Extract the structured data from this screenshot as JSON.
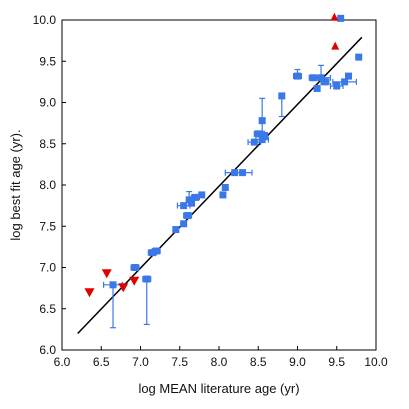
{
  "chart_data": {
    "type": "scatter",
    "title": "",
    "xlabel": "log MEAN literature age  (yr)",
    "ylabel": "log best fit age (yr).",
    "xlim": [
      6.0,
      10.0
    ],
    "ylim": [
      6.0,
      10.0
    ],
    "xticks": [
      "6.0",
      "6.5",
      "7.0",
      "7.5",
      "8.0",
      "8.5",
      "9.0",
      "9.5",
      "10.0"
    ],
    "yticks": [
      "6.0",
      "6.5",
      "7.0",
      "7.5",
      "8.0",
      "8.5",
      "9.0",
      "9.5",
      "10.0"
    ],
    "grid": false,
    "legend": "none",
    "colors": {
      "squares": "#3b78e7",
      "triangles": "#e00000",
      "line": "#000000"
    },
    "fit_line": {
      "x": [
        6.2,
        9.82
      ],
      "y": [
        6.2,
        9.79
      ]
    },
    "series": [
      {
        "marker": "square",
        "points": [
          {
            "x": 6.65,
            "y": 6.79,
            "xerr": 0.12,
            "yerr_low": 0.52,
            "yerr_high": 0.0
          },
          {
            "x": 6.93,
            "y": 7.0,
            "xerr": 0.05,
            "yerr_low": 0.0,
            "yerr_high": 0.0
          },
          {
            "x": 7.08,
            "y": 6.86,
            "xerr": 0.05,
            "yerr_low": 0.55,
            "yerr_high": 0.0
          },
          {
            "x": 7.15,
            "y": 7.18,
            "xerr": 0.05,
            "yerr_low": 0.0,
            "yerr_high": 0.0
          },
          {
            "x": 7.2,
            "y": 7.2,
            "xerr": 0.05,
            "yerr_low": 0.0,
            "yerr_high": 0.0
          },
          {
            "x": 7.45,
            "y": 7.46,
            "xerr": 0.0,
            "yerr_low": 0.0,
            "yerr_high": 0.0
          },
          {
            "x": 7.55,
            "y": 7.53,
            "xerr": 0.0,
            "yerr_low": 0.0,
            "yerr_high": 0.0
          },
          {
            "x": 7.55,
            "y": 7.75,
            "xerr": 0.08,
            "yerr_low": 0.0,
            "yerr_high": 0.0
          },
          {
            "x": 7.6,
            "y": 7.63,
            "xerr": 0.05,
            "yerr_low": 0.0,
            "yerr_high": 0.0
          },
          {
            "x": 7.62,
            "y": 7.82,
            "xerr": 0.0,
            "yerr_low": 0.0,
            "yerr_high": 0.1
          },
          {
            "x": 7.65,
            "y": 7.78,
            "xerr": 0.0,
            "yerr_low": 0.0,
            "yerr_high": 0.0
          },
          {
            "x": 7.7,
            "y": 7.85,
            "xerr": 0.05,
            "yerr_low": 0.0,
            "yerr_high": 0.0
          },
          {
            "x": 7.78,
            "y": 7.88,
            "xerr": 0.0,
            "yerr_low": 0.0,
            "yerr_high": 0.0
          },
          {
            "x": 8.05,
            "y": 7.88,
            "xerr": 0.0,
            "yerr_low": 0.0,
            "yerr_high": 0.0
          },
          {
            "x": 8.08,
            "y": 7.97,
            "xerr": 0.0,
            "yerr_low": 0.0,
            "yerr_high": 0.0
          },
          {
            "x": 8.2,
            "y": 8.15,
            "xerr": 0.12,
            "yerr_low": 0.0,
            "yerr_high": 0.0
          },
          {
            "x": 8.3,
            "y": 8.15,
            "xerr": 0.12,
            "yerr_low": 0.0,
            "yerr_high": 0.0
          },
          {
            "x": 8.45,
            "y": 8.52,
            "xerr": 0.08,
            "yerr_low": 0.0,
            "yerr_high": 0.0
          },
          {
            "x": 8.5,
            "y": 8.62,
            "xerr": 0.05,
            "yerr_low": 0.0,
            "yerr_high": 0.0
          },
          {
            "x": 8.55,
            "y": 8.78,
            "xerr": 0.0,
            "yerr_low": 0.13,
            "yerr_high": 0.27
          },
          {
            "x": 8.55,
            "y": 8.55,
            "xerr": 0.08,
            "yerr_low": 0.0,
            "yerr_high": 0.0
          },
          {
            "x": 8.58,
            "y": 8.6,
            "xerr": 0.0,
            "yerr_low": 0.0,
            "yerr_high": 0.0
          },
          {
            "x": 8.8,
            "y": 9.08,
            "xerr": 0.0,
            "yerr_low": 0.25,
            "yerr_high": 0.0
          },
          {
            "x": 9.0,
            "y": 9.32,
            "xerr": 0.05,
            "yerr_low": 0.0,
            "yerr_high": 0.08
          },
          {
            "x": 9.2,
            "y": 9.3,
            "xerr": 0.05,
            "yerr_low": 0.0,
            "yerr_high": 0.0
          },
          {
            "x": 9.25,
            "y": 9.17,
            "xerr": 0.0,
            "yerr_low": 0.0,
            "yerr_high": 0.0
          },
          {
            "x": 9.3,
            "y": 9.3,
            "xerr": 0.12,
            "yerr_low": 0.0,
            "yerr_high": 0.15
          },
          {
            "x": 9.35,
            "y": 9.25,
            "xerr": 0.05,
            "yerr_low": 0.0,
            "yerr_high": 0.0
          },
          {
            "x": 9.5,
            "y": 9.2,
            "xerr": 0.08,
            "yerr_low": 0.0,
            "yerr_high": 0.0
          },
          {
            "x": 9.55,
            "y": 10.02,
            "xerr": 0.0,
            "yerr_low": 0.0,
            "yerr_high": 0.0
          },
          {
            "x": 9.6,
            "y": 9.25,
            "xerr": 0.15,
            "yerr_low": 0.0,
            "yerr_high": 0.0
          },
          {
            "x": 9.65,
            "y": 9.32,
            "xerr": 0.0,
            "yerr_low": 0.0,
            "yerr_high": 0.0
          },
          {
            "x": 9.78,
            "y": 9.55,
            "xerr": 0.0,
            "yerr_low": 0.0,
            "yerr_high": 0.0
          }
        ]
      },
      {
        "marker": "triangle-down",
        "points": [
          {
            "x": 6.35,
            "y": 6.7
          },
          {
            "x": 6.57,
            "y": 6.93
          },
          {
            "x": 6.78,
            "y": 6.76
          },
          {
            "x": 6.92,
            "y": 6.84
          }
        ]
      },
      {
        "marker": "triangle-up",
        "points": [
          {
            "x": 9.47,
            "y": 10.04
          },
          {
            "x": 9.48,
            "y": 9.69
          }
        ]
      }
    ]
  }
}
